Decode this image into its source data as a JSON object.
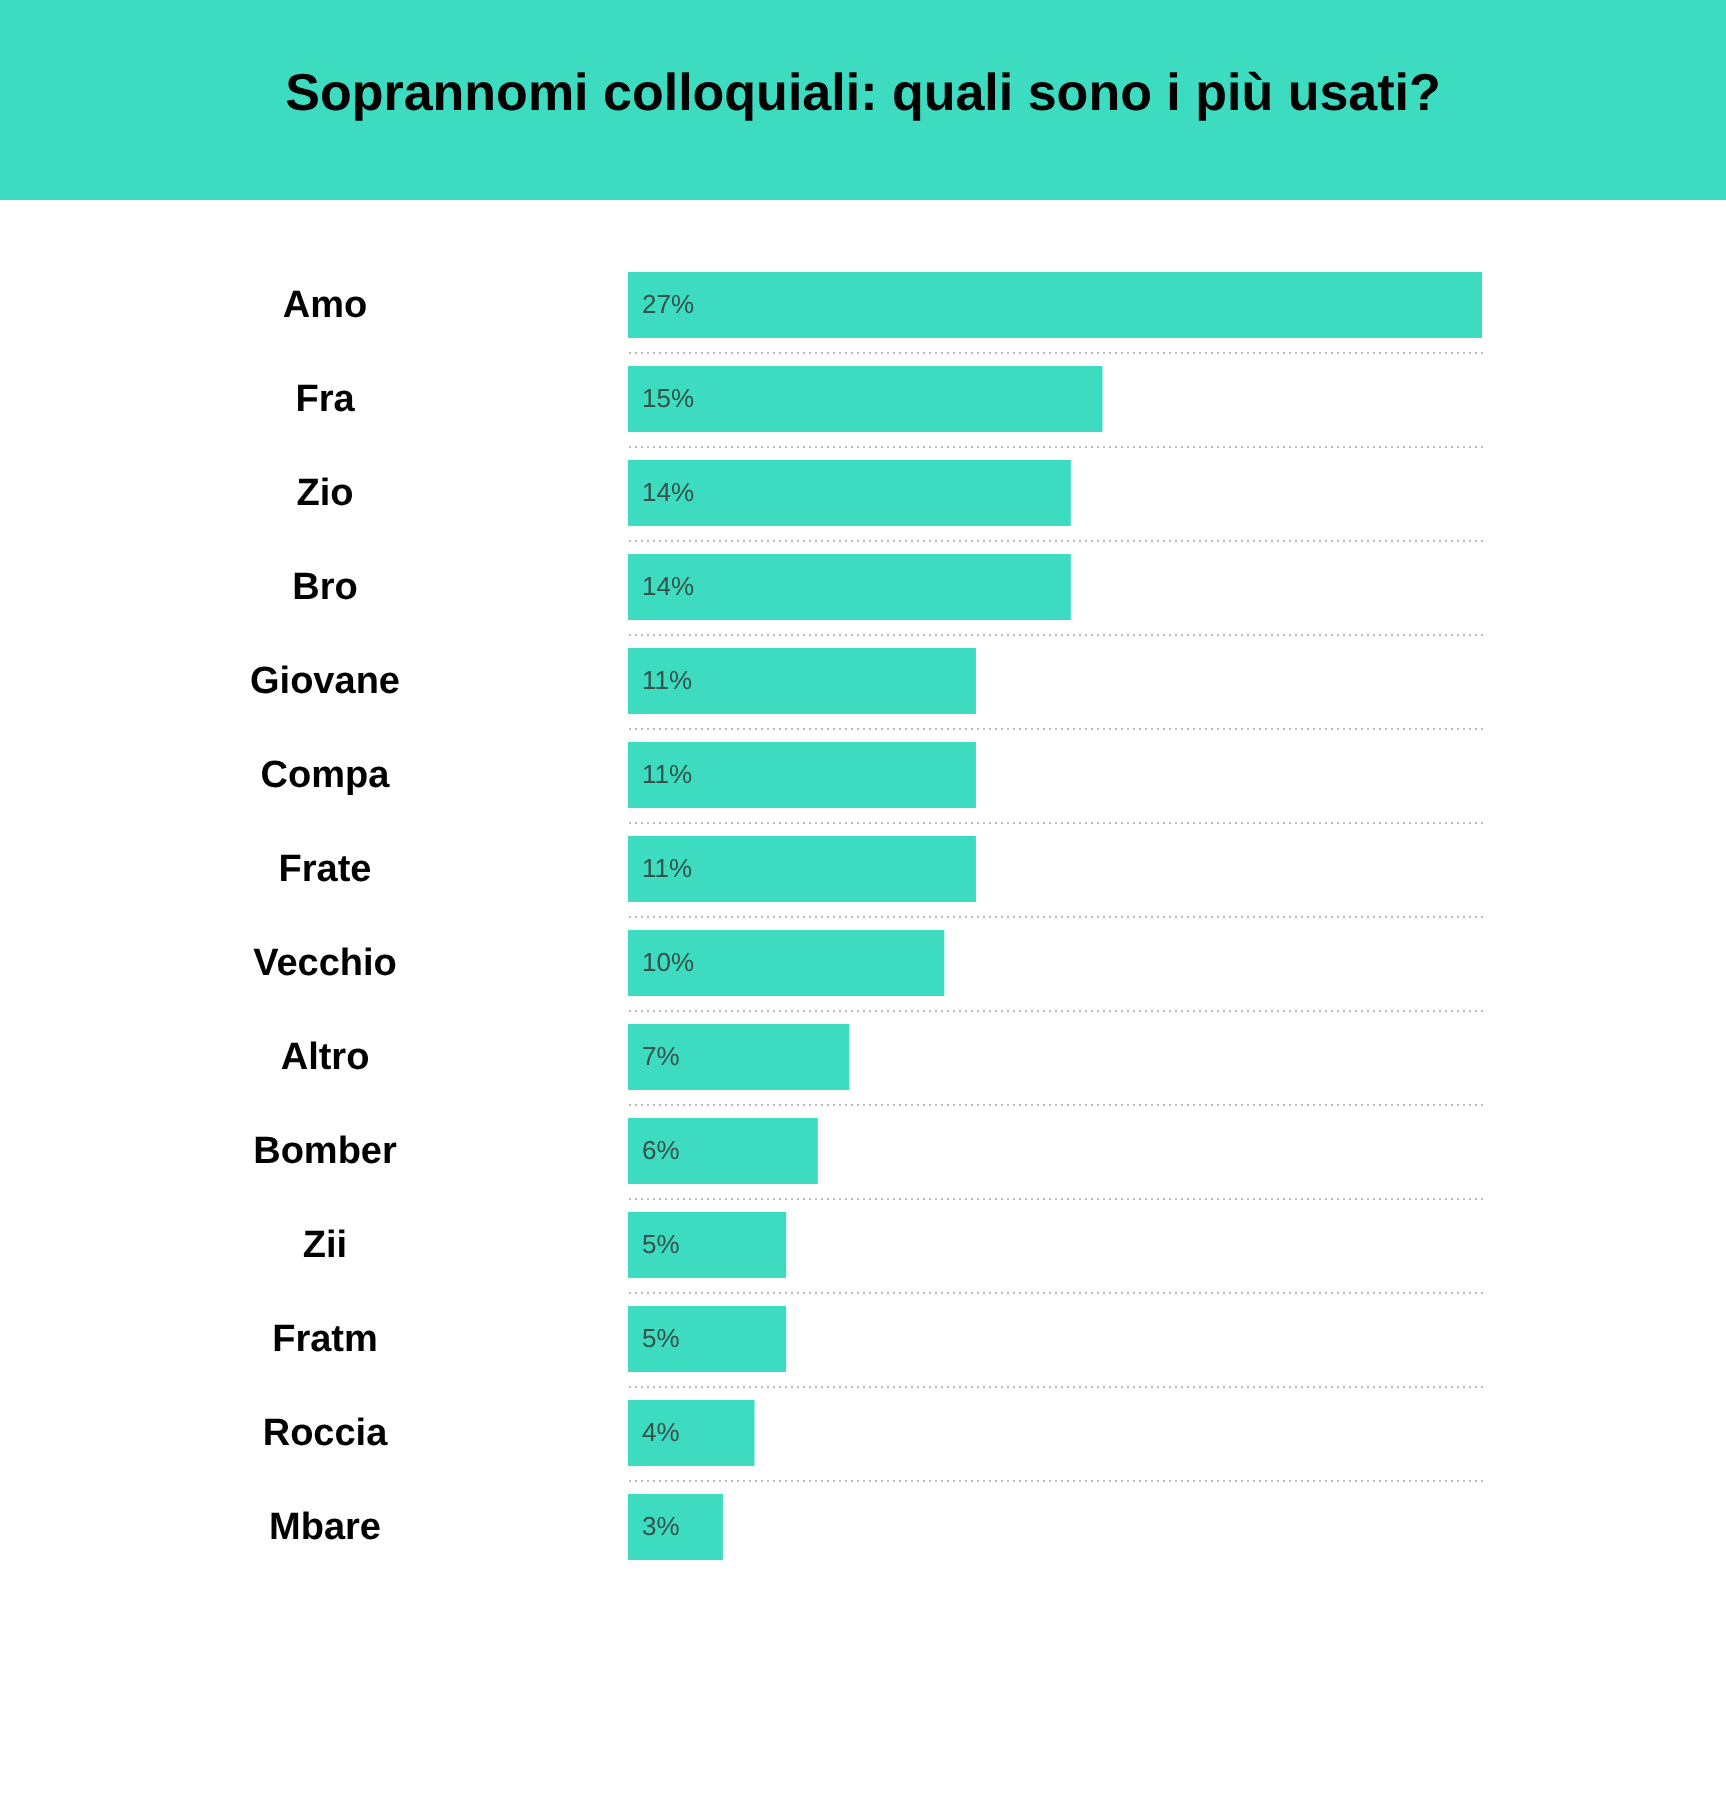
{
  "chart_data": {
    "type": "bar",
    "orientation": "horizontal",
    "title": "Soprannomi colloquiali: quali sono i più usati?",
    "categories": [
      "Amo",
      "Fra",
      "Zio",
      "Bro",
      "Giovane",
      "Compa",
      "Frate",
      "Vecchio",
      "Altro",
      "Bomber",
      "Zii",
      "Fratm",
      "Roccia",
      "Mbare"
    ],
    "values": [
      27,
      15,
      14,
      14,
      11,
      11,
      11,
      10,
      7,
      6,
      5,
      5,
      4,
      3
    ],
    "value_labels": [
      "27%",
      "15%",
      "14%",
      "14%",
      "11%",
      "11%",
      "11%",
      "10%",
      "7%",
      "6%",
      "5%",
      "5%",
      "4%",
      "3%"
    ],
    "color": "#3ddbc0",
    "xlim": [
      0,
      27
    ],
    "grid": "y",
    "tick_labels": "y"
  }
}
